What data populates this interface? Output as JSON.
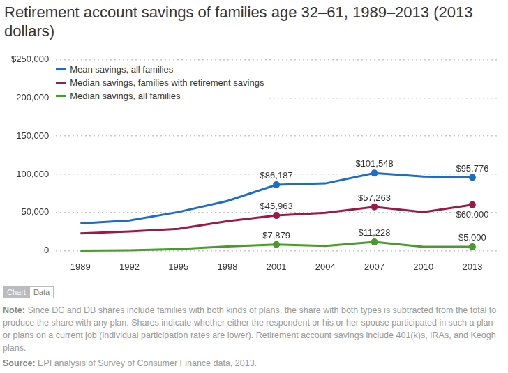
{
  "chart_data": {
    "type": "line",
    "title": "Retirement account savings of families age 32–61, 1989–2013 (2013 dollars)",
    "categories": [
      "1989",
      "1992",
      "1995",
      "1998",
      "2001",
      "2004",
      "2007",
      "2010",
      "2013"
    ],
    "series": [
      {
        "name": "Mean savings, all families",
        "color": "#1f6cc4",
        "values": [
          35500,
          39500,
          50500,
          65000,
          86187,
          88000,
          101548,
          97000,
          95776
        ],
        "value_labels": [
          null,
          null,
          null,
          null,
          "$86,187",
          null,
          "$101,548",
          null,
          "$95,776"
        ]
      },
      {
        "name": "Median savings, families with retirement savings",
        "color": "#9b1b47",
        "values": [
          22500,
          25000,
          28500,
          38500,
          45963,
          49500,
          57263,
          50500,
          60000
        ],
        "value_labels": [
          null,
          null,
          null,
          null,
          "$45,963",
          null,
          "$57,263",
          null,
          "$60,000"
        ]
      },
      {
        "name": "Median savings, all families",
        "color": "#4a9a2e",
        "values": [
          0,
          300,
          2000,
          5500,
          7879,
          6000,
          11228,
          5000,
          5000
        ],
        "value_labels": [
          null,
          null,
          null,
          null,
          "$7,879",
          null,
          "$11,228",
          null,
          "$5,000"
        ]
      }
    ],
    "ylim": [
      0,
      250000
    ],
    "yticks": [
      0,
      {
        "value": 50000,
        "label": "50,000"
      },
      {
        "value": 100000,
        "label": "100,000"
      },
      {
        "value": 150000,
        "label": "150,000"
      },
      {
        "value": 200000,
        "label": "200,000"
      },
      {
        "value": 250000,
        "label": "$250,000"
      }
    ],
    "grid": true,
    "legend": "upper left",
    "data_labels": true,
    "tabs": [
      "Chart",
      "Data"
    ],
    "note_label": "Note:",
    "note": "Since DC and DB shares include families with both kinds of plans, the share with both types is subtracted from the total to produce the share with any plan. Shares indicate whether either the respondent or his or her spouse participated in such a plan or plans on a current job (individual participation rates are lower). Retirement account savings include 401(k)s, IRAs, and Keogh plans.",
    "source_label": "Source:",
    "source": "EPI analysis of Survey of Consumer Finance data, 2013."
  }
}
